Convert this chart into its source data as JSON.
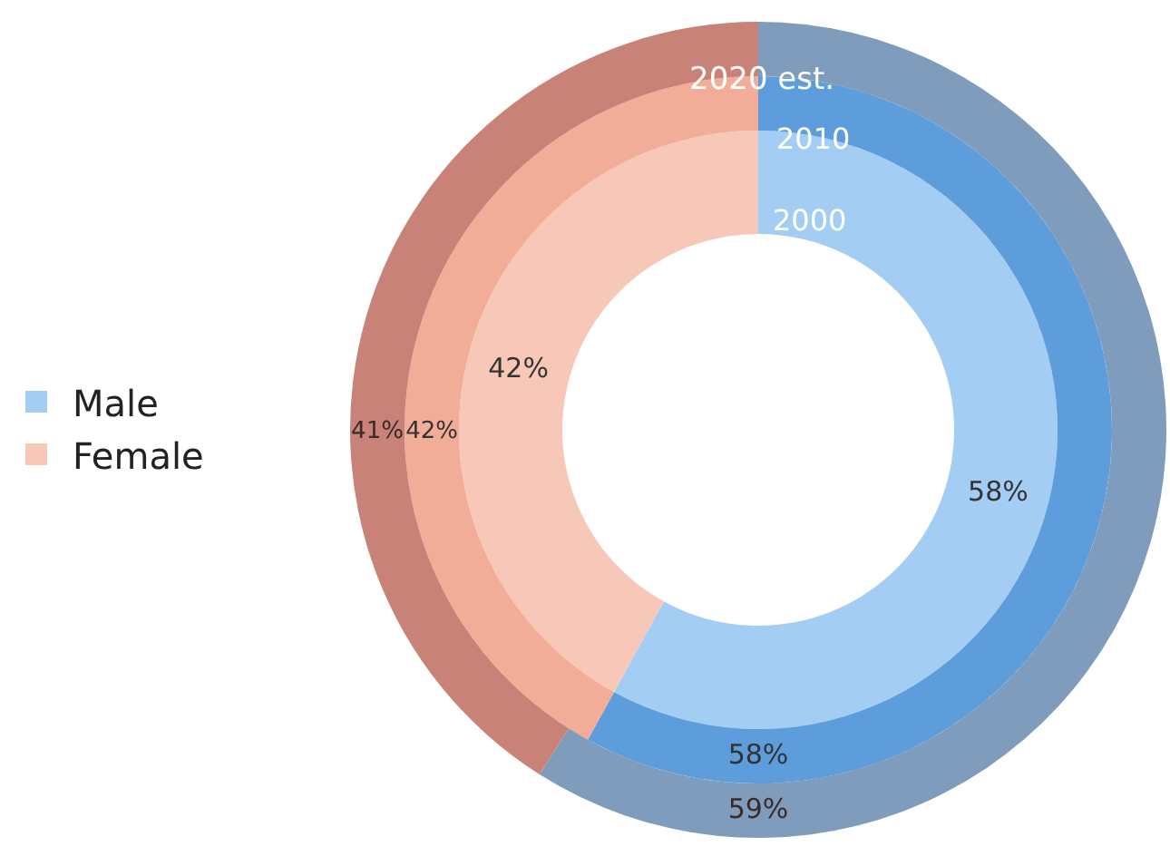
{
  "chart_data": {
    "type": "donut",
    "categories": [
      "Male",
      "Female"
    ],
    "series": [
      {
        "name": "2000",
        "colors": [
          "#a3cdf2",
          "#f7c8b8"
        ],
        "values": [
          58,
          42
        ],
        "value_labels": [
          "58%",
          "42%"
        ]
      },
      {
        "name": "2010",
        "colors": [
          "#5d9ddb",
          "#f2ad98"
        ],
        "values": [
          58,
          42
        ],
        "value_labels": [
          "58%",
          "42%"
        ]
      },
      {
        "name": "2020 est.",
        "colors": [
          "#7f9cbd",
          "#c98277"
        ],
        "values": [
          59,
          41
        ],
        "value_labels": [
          "59%",
          "41%"
        ]
      }
    ],
    "legend": "left"
  }
}
